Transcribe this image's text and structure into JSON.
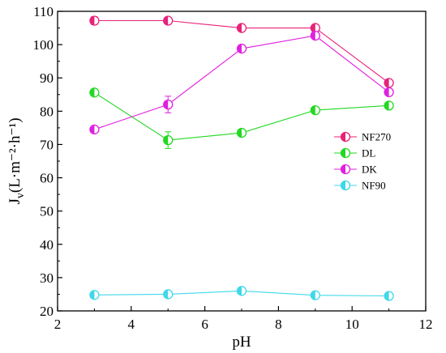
{
  "chart_data": {
    "type": "line",
    "title": "",
    "xlabel": "pH",
    "ylabel": {
      "main": "J",
      "sub": "v",
      "unit": "(L·m⁻²·h⁻¹)"
    },
    "xlim": [
      2,
      12
    ],
    "ylim": [
      20,
      110
    ],
    "xticks": [
      2,
      4,
      6,
      8,
      10,
      12
    ],
    "yticks": [
      20,
      30,
      40,
      50,
      60,
      70,
      80,
      90,
      100,
      110
    ],
    "x": [
      3,
      5,
      7,
      9,
      11
    ],
    "grid": false,
    "legend_position": "right",
    "series": [
      {
        "name": "NF270",
        "color": "#e8227a",
        "values": [
          107.2,
          107.2,
          105.0,
          105.0,
          88.5
        ],
        "errors": [
          1.2,
          0.6,
          0.4,
          0.5,
          0.6
        ]
      },
      {
        "name": "DL",
        "color": "#22d822",
        "values": [
          85.6,
          71.3,
          73.5,
          80.3,
          81.7
        ],
        "errors": [
          0.8,
          2.5,
          1.0,
          0.6,
          0.8
        ]
      },
      {
        "name": "DK",
        "color": "#e020e0",
        "values": [
          74.5,
          82.0,
          98.8,
          102.7,
          85.7
        ],
        "errors": [
          0.8,
          2.5,
          0.8,
          1.0,
          0.6
        ]
      },
      {
        "name": "NF90",
        "color": "#3fd8ea",
        "values": [
          24.8,
          25.0,
          26.0,
          24.7,
          24.5
        ],
        "errors": [
          0.8,
          0.8,
          1.0,
          0.6,
          0.6
        ]
      }
    ]
  }
}
